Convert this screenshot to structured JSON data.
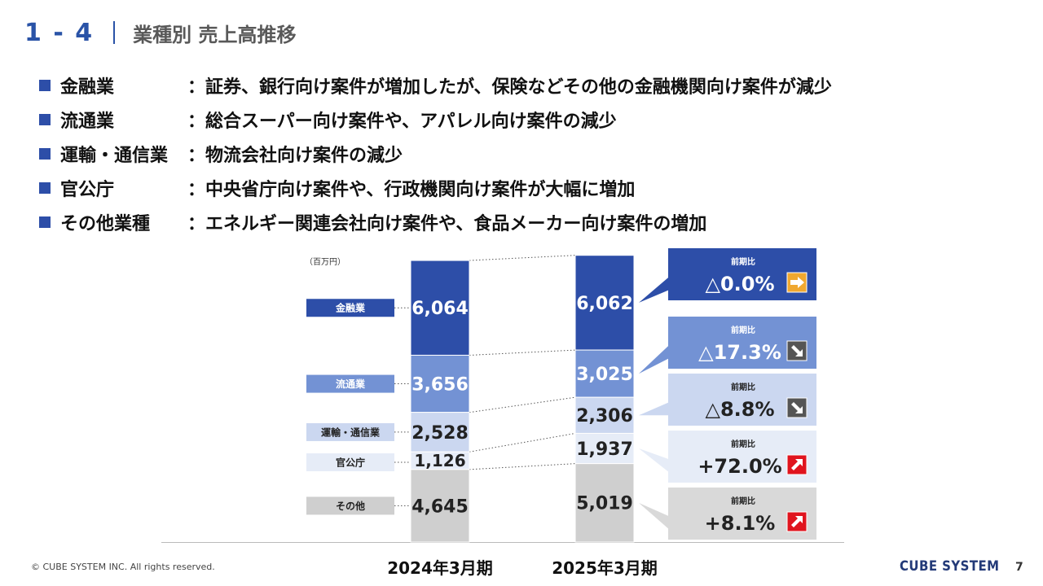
{
  "header": {
    "section": "1 - 4",
    "title": "業種別 売上高推移"
  },
  "bullets": [
    {
      "name": "金融業",
      "colon": "：",
      "text": "証券、銀行向け案件が増加したが、保険などその他の金融機関向け案件が減少"
    },
    {
      "name": "流通業",
      "colon": "：",
      "text": "総合スーパー向け案件や、アパレル向け案件の減少"
    },
    {
      "name": "運輸・通信業",
      "colon": "：",
      "text": "物流会社向け案件の減少"
    },
    {
      "name": "官公庁",
      "colon": "：",
      "text": "中央省庁向け案件や、行政機関向け案件が大幅に増加"
    },
    {
      "name": "その他業種",
      "colon": "：",
      "text": "エネルギー関連会社向け案件や、食品メーカー向け案件の増加"
    }
  ],
  "chart_data": {
    "type": "bar",
    "stacked": true,
    "unit_label": "（百万円）",
    "categories": [
      "2024年3月期",
      "2025年3月期"
    ],
    "series": [
      {
        "name": "金融業",
        "values": [
          6064,
          6062
        ],
        "labels": [
          "6,064",
          "6,062"
        ],
        "color": "#2d4ea8",
        "text_color": "#ffffff",
        "legend_text_color": "#ffffff",
        "change": "△0.0%",
        "trend": "flat"
      },
      {
        "name": "流通業",
        "values": [
          3656,
          3025
        ],
        "labels": [
          "3,656",
          "3,025"
        ],
        "color": "#7392d4",
        "text_color": "#ffffff",
        "legend_text_color": "#ffffff",
        "change": "△17.3%",
        "trend": "down"
      },
      {
        "name": "運輸・通信業",
        "values": [
          2528,
          2306
        ],
        "labels": [
          "2,528",
          "2,306"
        ],
        "color": "#cbd7f0",
        "text_color": "#222222",
        "legend_text_color": "#222222",
        "change": "△8.8%",
        "trend": "down"
      },
      {
        "name": "官公庁",
        "values": [
          1126,
          1937
        ],
        "labels": [
          "1,126",
          "1,937"
        ],
        "color": "#e6ecf7",
        "text_color": "#222222",
        "legend_text_color": "#222222",
        "change": "+72.0%",
        "trend": "up"
      },
      {
        "name": "その他",
        "values": [
          4645,
          5019
        ],
        "labels": [
          "4,645",
          "5,019"
        ],
        "color": "#cfcfcf",
        "text_color": "#222222",
        "legend_text_color": "#222222",
        "change": "+8.1%",
        "trend": "up"
      }
    ],
    "callout_label": "前期比",
    "callout_colors": [
      "#2d4ea8",
      "#7392d4",
      "#cbd7f0",
      "#e6ecf7",
      "#d9d9d9"
    ],
    "callout_text_colors": [
      "#ffffff",
      "#ffffff",
      "#222222",
      "#222222",
      "#222222"
    ],
    "trend_icons": {
      "flat": "right-arrow-icon",
      "down": "down-right-arrow-icon",
      "up": "up-right-arrow-icon"
    },
    "trend_colors": {
      "flat": "#f0a830",
      "down": "#555555",
      "up": "#e0141e"
    }
  },
  "footer": {
    "copyright": "© CUBE SYSTEM INC. All rights reserved.",
    "logo": "CUBE SYSTEM",
    "page": "7"
  }
}
